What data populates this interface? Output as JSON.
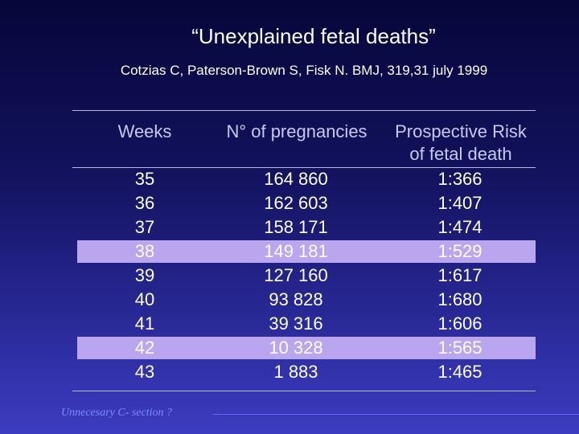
{
  "slide": {
    "title": "“Unexplained fetal deaths”",
    "subtitle": "Cotzias C, Paterson-Brown S, Fisk N. BMJ, 319,31 july 1999",
    "footnote": "Unnecesary C- section ?"
  },
  "table": {
    "headers": {
      "weeks": "Weeks",
      "pregnancies": "N° of pregnancies",
      "risk_line1": "Prospective Risk",
      "risk_line2": "of fetal death"
    },
    "rows": [
      {
        "week": "35",
        "pregnancies": "164 860",
        "risk": "1:366",
        "highlighted": false
      },
      {
        "week": "36",
        "pregnancies": "162 603",
        "risk": "1:407",
        "highlighted": false
      },
      {
        "week": "37",
        "pregnancies": "158 171",
        "risk": "1:474",
        "highlighted": false
      },
      {
        "week": "38",
        "pregnancies": "149 181",
        "risk": "1:529",
        "highlighted": true
      },
      {
        "week": "39",
        "pregnancies": "127 160",
        "risk": "1:617",
        "highlighted": false
      },
      {
        "week": "40",
        "pregnancies": "93 828",
        "risk": "1:680",
        "highlighted": false
      },
      {
        "week": "41",
        "pregnancies": "39 316",
        "risk": "1:606",
        "highlighted": false
      },
      {
        "week": "42",
        "pregnancies": "10 328",
        "risk": "1:565",
        "highlighted": true
      },
      {
        "week": "43",
        "pregnancies": "1 883",
        "risk": "1:465",
        "highlighted": false
      }
    ]
  },
  "colors": {
    "background_top": "#06063a",
    "background_bottom": "#3c3cc0",
    "header_text": "#c8c8f0",
    "row_highlight": "#b9a6ee",
    "footnote_text": "#7c8cff"
  }
}
